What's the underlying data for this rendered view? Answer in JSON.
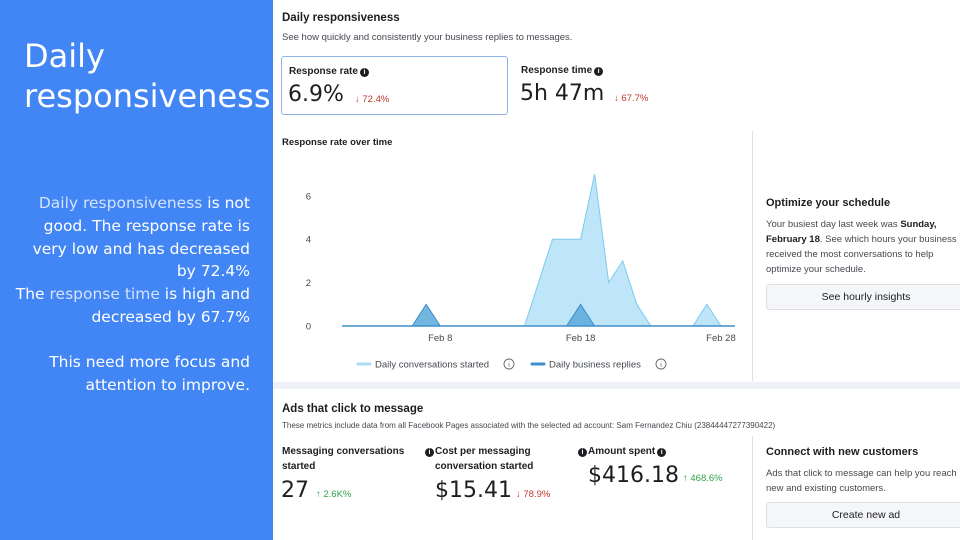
{
  "slide": {
    "title": "Daily responsiveness",
    "p1_hl": "Daily responsiveness",
    "p1_rest": " is not good. The response rate is very low and has decreased by 72.4%",
    "p2_a": "The ",
    "p2_hl": "response time",
    "p2_rest": " is high and decreased by 67.7%",
    "p3": "This need more focus and attention to improve."
  },
  "responsiveness": {
    "title": "Daily responsiveness",
    "subtitle": "See how quickly and consistently your business replies to messages.",
    "response_rate": {
      "label": "Response rate",
      "value": "6.9%",
      "delta": "↓ 72.4%",
      "direction": "down"
    },
    "response_time": {
      "label": "Response time",
      "value": "5h 47m",
      "delta": "↓ 67.7%",
      "direction": "down"
    }
  },
  "chart_data": {
    "type": "area",
    "title": "Response rate over time",
    "x": [
      "Feb 1",
      "Feb 2",
      "Feb 3",
      "Feb 4",
      "Feb 5",
      "Feb 6",
      "Feb 7",
      "Feb 8",
      "Feb 9",
      "Feb 10",
      "Feb 11",
      "Feb 12",
      "Feb 13",
      "Feb 14",
      "Feb 15",
      "Feb 16",
      "Feb 17",
      "Feb 18",
      "Feb 19",
      "Feb 20",
      "Feb 21",
      "Feb 22",
      "Feb 23",
      "Feb 24",
      "Feb 25",
      "Feb 26",
      "Feb 27",
      "Feb 28",
      "Feb 29"
    ],
    "x_ticks": [
      "Feb 8",
      "Feb 18",
      "Feb 28"
    ],
    "y_ticks": [
      0,
      2,
      4,
      6
    ],
    "ylim": [
      0,
      7.5
    ],
    "series": [
      {
        "name": "Daily conversations started",
        "color": "#a9dcf5",
        "stroke": "#7ccaf0",
        "values": [
          0,
          0,
          0,
          0,
          0,
          0,
          0,
          0,
          0,
          0,
          0,
          0,
          0,
          0,
          2,
          4,
          4,
          4,
          7,
          2,
          3,
          1,
          0,
          0,
          0,
          0,
          1,
          0,
          0
        ]
      },
      {
        "name": "Daily business replies",
        "color": "#5aa9db",
        "stroke": "#3d8ec9",
        "values": [
          0,
          0,
          0,
          0,
          0,
          0,
          1,
          0,
          0,
          0,
          0,
          0,
          0,
          0,
          0,
          0,
          0,
          1,
          0,
          0,
          0,
          0,
          0,
          0,
          0,
          0,
          0,
          0,
          0
        ]
      }
    ]
  },
  "optimize": {
    "title": "Optimize your schedule",
    "text_a": "Your busiest day last week was ",
    "text_bold": "Sunday, February 18",
    "text_b": ". See which hours your business received the most conversations to help optimize your schedule.",
    "button": "See hourly insights"
  },
  "ads": {
    "title": "Ads that click to message",
    "subtitle": "These metrics include data from all Facebook Pages associated with the selected ad account: Sam Fernandez Chiu (23844447277390422)",
    "conversations": {
      "label_line1": "Messaging conversations",
      "label_line2": "started",
      "value": "27",
      "delta": "↑ 2.6K%",
      "direction": "up"
    },
    "cost": {
      "label_line1": "Cost per messaging",
      "label_line2": "conversation started",
      "value": "$15.41",
      "delta": "↓ 78.9%",
      "direction": "down"
    },
    "amount": {
      "label": "Amount spent",
      "value": "$416.18",
      "delta": "↑ 468.6%",
      "direction": "up"
    }
  },
  "connect": {
    "title": "Connect with new customers",
    "text": "Ads that click to message can help you reach new and existing customers.",
    "button": "Create new ad"
  }
}
